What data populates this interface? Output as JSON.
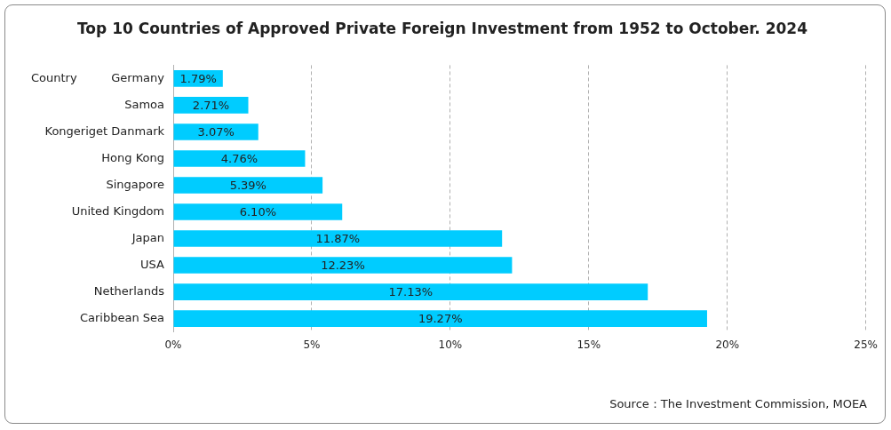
{
  "chart_data": {
    "type": "bar",
    "orientation": "horizontal",
    "title": "Top 10 Countries of Approved Private Foreign Investment from 1952 to October. 2024",
    "ylabel": "Country",
    "source": "Source：The Investment Commission, MOEA",
    "categories": [
      "Germany",
      "Samoa",
      "Kongeriget Danmark",
      "Hong Kong",
      "Singapore",
      "United Kingdom",
      "Japan",
      "USA",
      "Netherlands",
      "Caribbean Sea"
    ],
    "values": [
      1.79,
      2.71,
      3.07,
      4.76,
      5.39,
      6.1,
      11.87,
      12.23,
      17.13,
      19.27
    ],
    "value_labels": [
      "1.79%",
      "2.71%",
      "3.07%",
      "4.76%",
      "5.39%",
      "6.10%",
      "11.87%",
      "12.23%",
      "17.13%",
      "19.27%"
    ],
    "color": "#00ccff",
    "xlim": [
      0,
      25
    ],
    "xticks": [
      {
        "value": 0,
        "label": "0%"
      },
      {
        "value": 5,
        "label": "5%"
      },
      {
        "value": 10,
        "label": "10%"
      },
      {
        "value": 15,
        "label": "15%"
      },
      {
        "value": 20,
        "label": "20%"
      },
      {
        "value": 25,
        "label": "25%"
      }
    ],
    "grid": true,
    "data_labels": true
  }
}
